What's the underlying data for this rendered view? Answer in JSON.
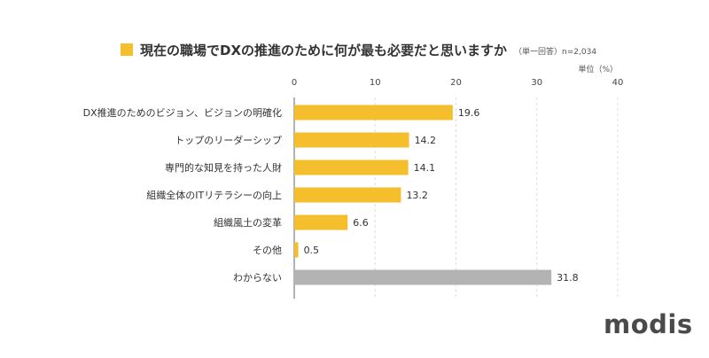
{
  "title": "現在の職場でDXの推進のために何が最も必要だと思いますか",
  "subtitle": "（単一回答）n=2,034",
  "brand": "modis",
  "colors": {
    "accent": "#F4BE2C",
    "gray": "#B3B3B3",
    "axis": "#666666",
    "grid": "#DDDDDD"
  },
  "chart_data": {
    "type": "bar",
    "orientation": "horizontal",
    "unit_label": "単位（%）",
    "xlim": [
      0,
      40
    ],
    "ticks": [
      0,
      10,
      20,
      30,
      40
    ],
    "grid": true,
    "categories": [
      "DX推進のためのビジョン、ビジョンの明確化",
      "トップのリーダーシップ",
      "専門的な知見を持った人財",
      "組織全体のITリテラシーの向上",
      "組織風土の変革",
      "その他",
      "わからない"
    ],
    "values": [
      19.6,
      14.2,
      14.1,
      13.2,
      6.6,
      0.5,
      31.8
    ],
    "bar_colors": [
      "#F4BE2C",
      "#F4BE2C",
      "#F4BE2C",
      "#F4BE2C",
      "#F4BE2C",
      "#F4BE2C",
      "#B3B3B3"
    ]
  }
}
